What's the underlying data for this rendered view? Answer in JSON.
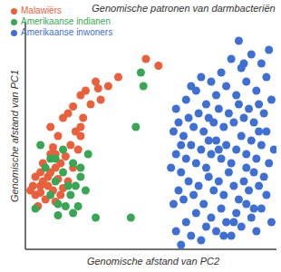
{
  "chart_data": {
    "type": "scatter",
    "title": "Genomische patronen van darmbacteriën",
    "x_label": "Genomische afstand van PC2",
    "y_label": "Genomische afstand van PC1",
    "xlim": [
      0,
      100
    ],
    "ylim": [
      0,
      100
    ],
    "tick_labels": false,
    "grid": false,
    "legend": "upper left",
    "marker": "circle",
    "series": [
      {
        "name": "Malawiërs",
        "color": "#e8603c",
        "x": [
          48,
          53,
          33,
          29,
          24,
          22,
          26,
          19,
          17,
          15,
          22,
          13,
          18,
          11,
          10,
          16,
          7,
          12,
          19,
          4,
          9,
          13,
          3,
          6,
          11,
          15,
          4,
          8,
          12,
          17,
          5,
          21,
          22,
          10,
          30,
          37,
          7,
          10,
          14,
          20,
          2,
          6,
          9,
          6,
          14,
          12,
          23,
          28
        ],
        "values": [
          84,
          81,
          72,
          71,
          70,
          68,
          64,
          63,
          60,
          58,
          54,
          50,
          46,
          45,
          42,
          41,
          38,
          36,
          36,
          32,
          32,
          31,
          28,
          28,
          26,
          27,
          24,
          22,
          21,
          30,
          19,
          44,
          50,
          54,
          66,
          76,
          30,
          34,
          38,
          52,
          26,
          25,
          28,
          34,
          24,
          42,
          58,
          74
        ]
      },
      {
        "name": "Amerikaanse indianen",
        "color": "#3aa655",
        "x": [
          46,
          47,
          44,
          42,
          28,
          19,
          13,
          17,
          15,
          19,
          6,
          10,
          22,
          12,
          20,
          8,
          13,
          18,
          4,
          24,
          15,
          12,
          22,
          16,
          10,
          25,
          21
        ],
        "values": [
          78,
          72,
          54,
          14,
          14,
          16,
          15,
          28,
          34,
          38,
          46,
          40,
          36,
          30,
          28,
          36,
          20,
          24,
          18,
          26,
          44,
          40,
          32,
          19,
          24,
          42,
          19
        ]
      },
      {
        "name": "Amerikaanse inwoners",
        "color": "#3f6fd1",
        "x": [
          62,
          60,
          64,
          66,
          70,
          72,
          68,
          74,
          76,
          78,
          80,
          82,
          84,
          86,
          88,
          90,
          92,
          94,
          96,
          98,
          59,
          61,
          63,
          65,
          67,
          69,
          71,
          73,
          75,
          77,
          79,
          81,
          83,
          85,
          87,
          89,
          91,
          93,
          95,
          97,
          58,
          60,
          62,
          64,
          66,
          68,
          70,
          72,
          74,
          76,
          78,
          80,
          82,
          84,
          86,
          88,
          90,
          92,
          94,
          96,
          99,
          59,
          61,
          63,
          65,
          67,
          69,
          71,
          73,
          75,
          77,
          79,
          81,
          83,
          85,
          87,
          89,
          91,
          93,
          95,
          98,
          64,
          68,
          72,
          76,
          80,
          84,
          88,
          92,
          96,
          70,
          78,
          86,
          94,
          82,
          90,
          87,
          66,
          74,
          97,
          85,
          60,
          62,
          91,
          79,
          73,
          88,
          93,
          77,
          83
        ],
        "values": [
          2,
          8,
          12,
          6,
          4,
          10,
          16,
          14,
          8,
          18,
          12,
          6,
          16,
          10,
          20,
          14,
          8,
          18,
          24,
          12,
          20,
          26,
          22,
          30,
          24,
          28,
          20,
          32,
          26,
          30,
          24,
          34,
          28,
          22,
          30,
          26,
          34,
          28,
          32,
          38,
          36,
          42,
          34,
          40,
          46,
          38,
          44,
          36,
          42,
          48,
          40,
          46,
          38,
          44,
          50,
          42,
          48,
          40,
          46,
          52,
          44,
          52,
          56,
          50,
          58,
          54,
          60,
          52,
          58,
          56,
          62,
          54,
          60,
          56,
          64,
          58,
          62,
          56,
          64,
          60,
          66,
          66,
          70,
          64,
          68,
          72,
          68,
          74,
          70,
          76,
          76,
          78,
          80,
          82,
          84,
          86,
          82,
          72,
          74,
          88,
          92,
          62,
          46,
          18,
          6,
          48,
          36,
          52,
          44,
          12
        ]
      }
    ]
  }
}
